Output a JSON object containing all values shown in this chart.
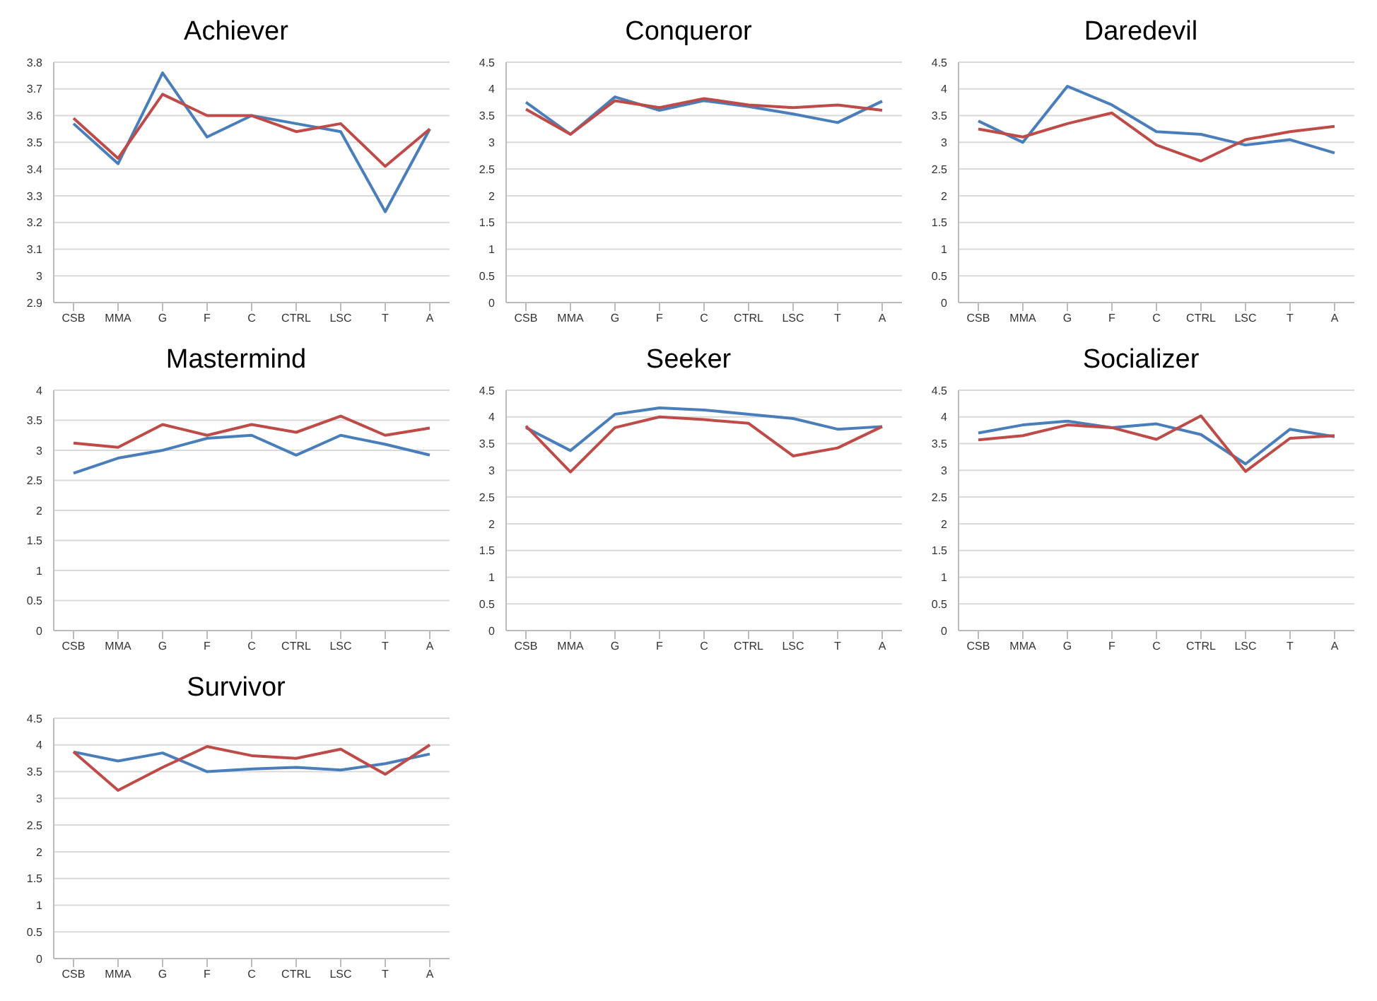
{
  "chart_data": [
    {
      "type": "line",
      "title": "Achiever",
      "categories": [
        "CSB",
        "MMA",
        "G",
        "F",
        "C",
        "CTRL",
        "LSC",
        "T",
        "A"
      ],
      "ylim": [
        2.9,
        3.8
      ],
      "yticks": [
        2.9,
        3,
        3.1,
        3.2,
        3.3,
        3.4,
        3.5,
        3.6,
        3.7,
        3.8
      ],
      "grid": "y",
      "marker": "none",
      "series": [
        {
          "color": "#4a7ebb",
          "values": [
            3.57,
            3.42,
            3.76,
            3.52,
            3.6,
            3.57,
            3.54,
            3.24,
            3.55
          ]
        },
        {
          "color": "#be4b48",
          "values": [
            3.59,
            3.44,
            3.68,
            3.6,
            3.6,
            3.54,
            3.57,
            3.41,
            3.55
          ]
        }
      ]
    },
    {
      "type": "line",
      "title": "Conqueror",
      "categories": [
        "CSB",
        "MMA",
        "G",
        "F",
        "C",
        "CTRL",
        "LSC",
        "T",
        "A"
      ],
      "ylim": [
        0,
        4.5
      ],
      "yticks": [
        0,
        0.5,
        1,
        1.5,
        2,
        2.5,
        3,
        3.5,
        4,
        4.5
      ],
      "grid": "y",
      "marker": "none",
      "series": [
        {
          "color": "#4a7ebb",
          "values": [
            3.75,
            3.15,
            3.85,
            3.6,
            3.78,
            3.67,
            3.53,
            3.37,
            3.77
          ]
        },
        {
          "color": "#be4b48",
          "values": [
            3.62,
            3.15,
            3.78,
            3.65,
            3.82,
            3.7,
            3.65,
            3.7,
            3.6
          ]
        }
      ]
    },
    {
      "type": "line",
      "title": "Daredevil",
      "categories": [
        "CSB",
        "MMA",
        "G",
        "F",
        "C",
        "CTRL",
        "LSC",
        "T",
        "A"
      ],
      "ylim": [
        0,
        4.5
      ],
      "yticks": [
        0,
        0.5,
        1,
        1.5,
        2,
        2.5,
        3,
        3.5,
        4,
        4.5
      ],
      "grid": "y",
      "marker": "none",
      "series": [
        {
          "color": "#4a7ebb",
          "values": [
            3.4,
            3.0,
            4.05,
            3.7,
            3.2,
            3.15,
            2.95,
            3.05,
            2.8
          ]
        },
        {
          "color": "#be4b48",
          "values": [
            3.25,
            3.1,
            3.35,
            3.55,
            2.95,
            2.65,
            3.05,
            3.2,
            3.3
          ]
        }
      ]
    },
    {
      "type": "line",
      "title": "Mastermind",
      "categories": [
        "CSB",
        "MMA",
        "G",
        "F",
        "C",
        "CTRL",
        "LSC",
        "T",
        "A"
      ],
      "ylim": [
        0,
        4
      ],
      "yticks": [
        0,
        0.5,
        1,
        1.5,
        2,
        2.5,
        3,
        3.5,
        4
      ],
      "grid": "y",
      "marker": "none",
      "series": [
        {
          "color": "#4a7ebb",
          "values": [
            2.62,
            2.87,
            3.0,
            3.2,
            3.25,
            2.92,
            3.25,
            3.1,
            2.92
          ]
        },
        {
          "color": "#be4b48",
          "values": [
            3.12,
            3.05,
            3.43,
            3.25,
            3.43,
            3.3,
            3.57,
            3.25,
            3.37
          ]
        }
      ]
    },
    {
      "type": "line",
      "title": "Seeker",
      "categories": [
        "CSB",
        "MMA",
        "G",
        "F",
        "C",
        "CTRL",
        "LSC",
        "T",
        "A"
      ],
      "ylim": [
        0,
        4.5
      ],
      "yticks": [
        0,
        0.5,
        1,
        1.5,
        2,
        2.5,
        3,
        3.5,
        4,
        4.5
      ],
      "grid": "y",
      "marker": "none",
      "series": [
        {
          "color": "#4a7ebb",
          "values": [
            3.8,
            3.37,
            4.05,
            4.17,
            4.13,
            4.05,
            3.97,
            3.77,
            3.82
          ]
        },
        {
          "color": "#be4b48",
          "values": [
            3.83,
            2.97,
            3.8,
            4.0,
            3.95,
            3.88,
            3.27,
            3.42,
            3.82
          ]
        }
      ]
    },
    {
      "type": "line",
      "title": "Socializer",
      "categories": [
        "CSB",
        "MMA",
        "G",
        "F",
        "C",
        "CTRL",
        "LSC",
        "T",
        "A"
      ],
      "ylim": [
        0,
        4.5
      ],
      "yticks": [
        0,
        0.5,
        1,
        1.5,
        2,
        2.5,
        3,
        3.5,
        4,
        4.5
      ],
      "grid": "y",
      "marker": "none",
      "series": [
        {
          "color": "#4a7ebb",
          "values": [
            3.7,
            3.85,
            3.92,
            3.8,
            3.87,
            3.67,
            3.12,
            3.77,
            3.63
          ]
        },
        {
          "color": "#be4b48",
          "values": [
            3.57,
            3.65,
            3.85,
            3.8,
            3.58,
            4.02,
            2.98,
            3.6,
            3.65
          ]
        }
      ]
    },
    {
      "type": "line",
      "title": "Survivor",
      "categories": [
        "CSB",
        "MMA",
        "G",
        "F",
        "C",
        "CTRL",
        "LSC",
        "T",
        "A"
      ],
      "ylim": [
        0,
        4.5
      ],
      "yticks": [
        0,
        0.5,
        1,
        1.5,
        2,
        2.5,
        3,
        3.5,
        4,
        4.5
      ],
      "grid": "y",
      "marker": "none",
      "series": [
        {
          "color": "#4a7ebb",
          "values": [
            3.87,
            3.7,
            3.85,
            3.5,
            3.55,
            3.58,
            3.53,
            3.65,
            3.83
          ]
        },
        {
          "color": "#be4b48",
          "values": [
            3.87,
            3.15,
            3.58,
            3.97,
            3.8,
            3.75,
            3.92,
            3.45,
            4.0
          ]
        }
      ]
    }
  ]
}
